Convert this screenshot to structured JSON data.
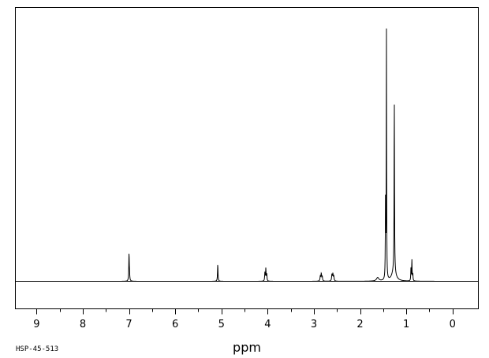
{
  "chart_data": {
    "type": "line",
    "title": "",
    "xlabel": "ppm",
    "ylabel": "",
    "xlim": [
      9.45,
      -0.55
    ],
    "ylim": [
      -0.1,
      1.0
    ],
    "x_reversed": true,
    "grid": false,
    "legend": "none",
    "ticks": {
      "major": [
        9,
        8,
        7,
        6,
        5,
        4,
        3,
        2,
        1,
        0
      ],
      "major_labels": [
        "9",
        "8",
        "7",
        "6",
        "5",
        "4",
        "3",
        "2",
        "1",
        "0"
      ],
      "minor_step": 0.5
    },
    "sample_id": "HSP-45-513",
    "peaks": [
      {
        "ppm": 7.0,
        "intensity": 0.108,
        "width": 0.006
      },
      {
        "ppm": 6.99,
        "intensity": 0.025,
        "width": 0.006
      },
      {
        "ppm": 5.08,
        "intensity": 0.068,
        "width": 0.006
      },
      {
        "ppm": 4.06,
        "intensity": 0.035,
        "width": 0.006
      },
      {
        "ppm": 4.04,
        "intensity": 0.05,
        "width": 0.006
      },
      {
        "ppm": 4.02,
        "intensity": 0.028,
        "width": 0.006
      },
      {
        "ppm": 2.86,
        "intensity": 0.02,
        "width": 0.008
      },
      {
        "ppm": 2.84,
        "intensity": 0.028,
        "width": 0.008
      },
      {
        "ppm": 2.82,
        "intensity": 0.018,
        "width": 0.008
      },
      {
        "ppm": 2.61,
        "intensity": 0.025,
        "width": 0.008
      },
      {
        "ppm": 2.59,
        "intensity": 0.028,
        "width": 0.008
      },
      {
        "ppm": 2.57,
        "intensity": 0.02,
        "width": 0.008
      },
      {
        "ppm": 1.62,
        "intensity": 0.014,
        "width": 0.03
      },
      {
        "ppm": 1.45,
        "intensity": 0.315,
        "width": 0.005
      },
      {
        "ppm": 1.43,
        "intensity": 1.0,
        "width": 0.004
      },
      {
        "ppm": 1.27,
        "intensity": 0.04,
        "width": 0.05
      },
      {
        "ppm": 1.26,
        "intensity": 0.7,
        "width": 0.005
      },
      {
        "ppm": 0.9,
        "intensity": 0.05,
        "width": 0.005
      },
      {
        "ppm": 0.88,
        "intensity": 0.085,
        "width": 0.005
      },
      {
        "ppm": 0.86,
        "intensity": 0.03,
        "width": 0.005
      }
    ]
  }
}
